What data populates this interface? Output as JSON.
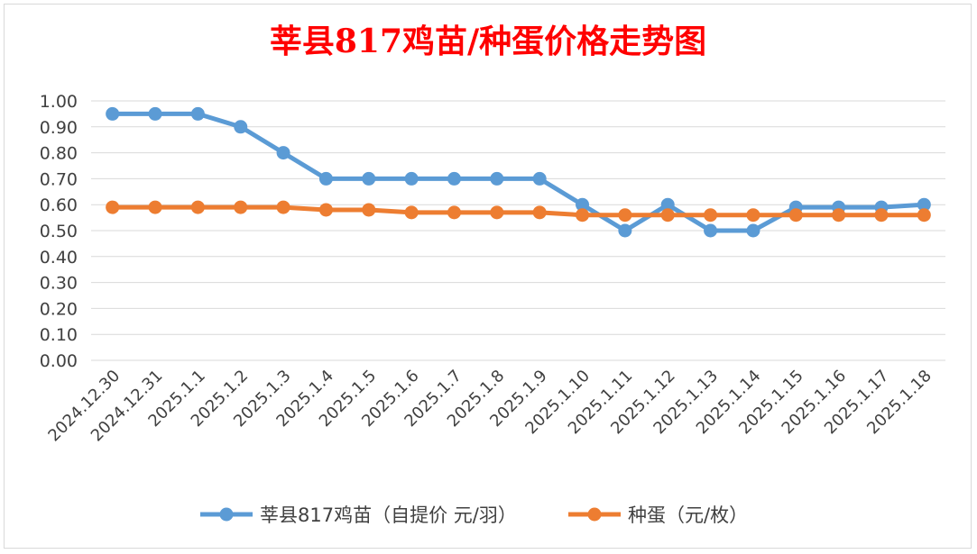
{
  "chart_data": {
    "type": "line",
    "title": "莘县817鸡苗/种蛋价格走势图",
    "title_color": "#ff0000",
    "categories": [
      "2024.12.30",
      "2024.12.31",
      "2025.1.1",
      "2025.1.2",
      "2025.1.3",
      "2025.1.4",
      "2025.1.5",
      "2025.1.6",
      "2025.1.7",
      "2025.1.8",
      "2025.1.9",
      "2025.1.10",
      "2025.1.11",
      "2025.1.12",
      "2025.1.13",
      "2025.1.14",
      "2025.1.15",
      "2025.1.16",
      "2025.1.17",
      "2025.1.18"
    ],
    "series": [
      {
        "name": "莘县817鸡苗（自提价 元/羽）",
        "color": "#5b9bd5",
        "values": [
          0.95,
          0.95,
          0.95,
          0.9,
          0.8,
          0.7,
          0.7,
          0.7,
          0.7,
          0.7,
          0.7,
          0.6,
          0.5,
          0.6,
          0.5,
          0.5,
          0.59,
          0.59,
          0.59,
          0.6
        ]
      },
      {
        "name": "种蛋（元/枚）",
        "color": "#ed7d31",
        "values": [
          0.59,
          0.59,
          0.59,
          0.59,
          0.59,
          0.58,
          0.58,
          0.57,
          0.57,
          0.57,
          0.57,
          0.56,
          0.56,
          0.56,
          0.56,
          0.56,
          0.56,
          0.56,
          0.56,
          0.56
        ]
      }
    ],
    "y_ticks": [
      "0.00",
      "0.10",
      "0.20",
      "0.30",
      "0.40",
      "0.50",
      "0.60",
      "0.70",
      "0.80",
      "0.90",
      "1.00"
    ],
    "ylim": [
      0,
      1.0
    ],
    "xlabel": "",
    "ylabel": "",
    "grid": true,
    "legend_position": "bottom"
  }
}
